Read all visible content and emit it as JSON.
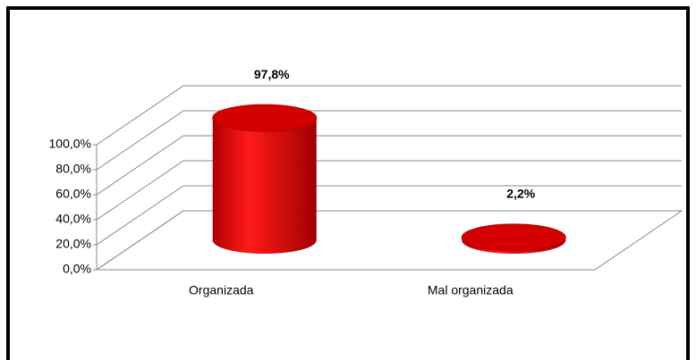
{
  "chart_data": {
    "type": "bar3d",
    "categories": [
      "Organizada",
      "Mal organizada"
    ],
    "values": [
      97.8,
      2.2
    ],
    "value_labels": [
      "97,8%",
      "2,2%"
    ],
    "color": "#e00000",
    "ylim": [
      0,
      100
    ],
    "yticks": [
      {
        "value": 0,
        "label": "0,0%"
      },
      {
        "value": 20,
        "label": "20,0%"
      },
      {
        "value": 40,
        "label": "40,0%"
      },
      {
        "value": 60,
        "label": "60,0%"
      },
      {
        "value": 80,
        "label": "80,0%"
      },
      {
        "value": 100,
        "label": "100,0%"
      }
    ],
    "grid": true
  }
}
